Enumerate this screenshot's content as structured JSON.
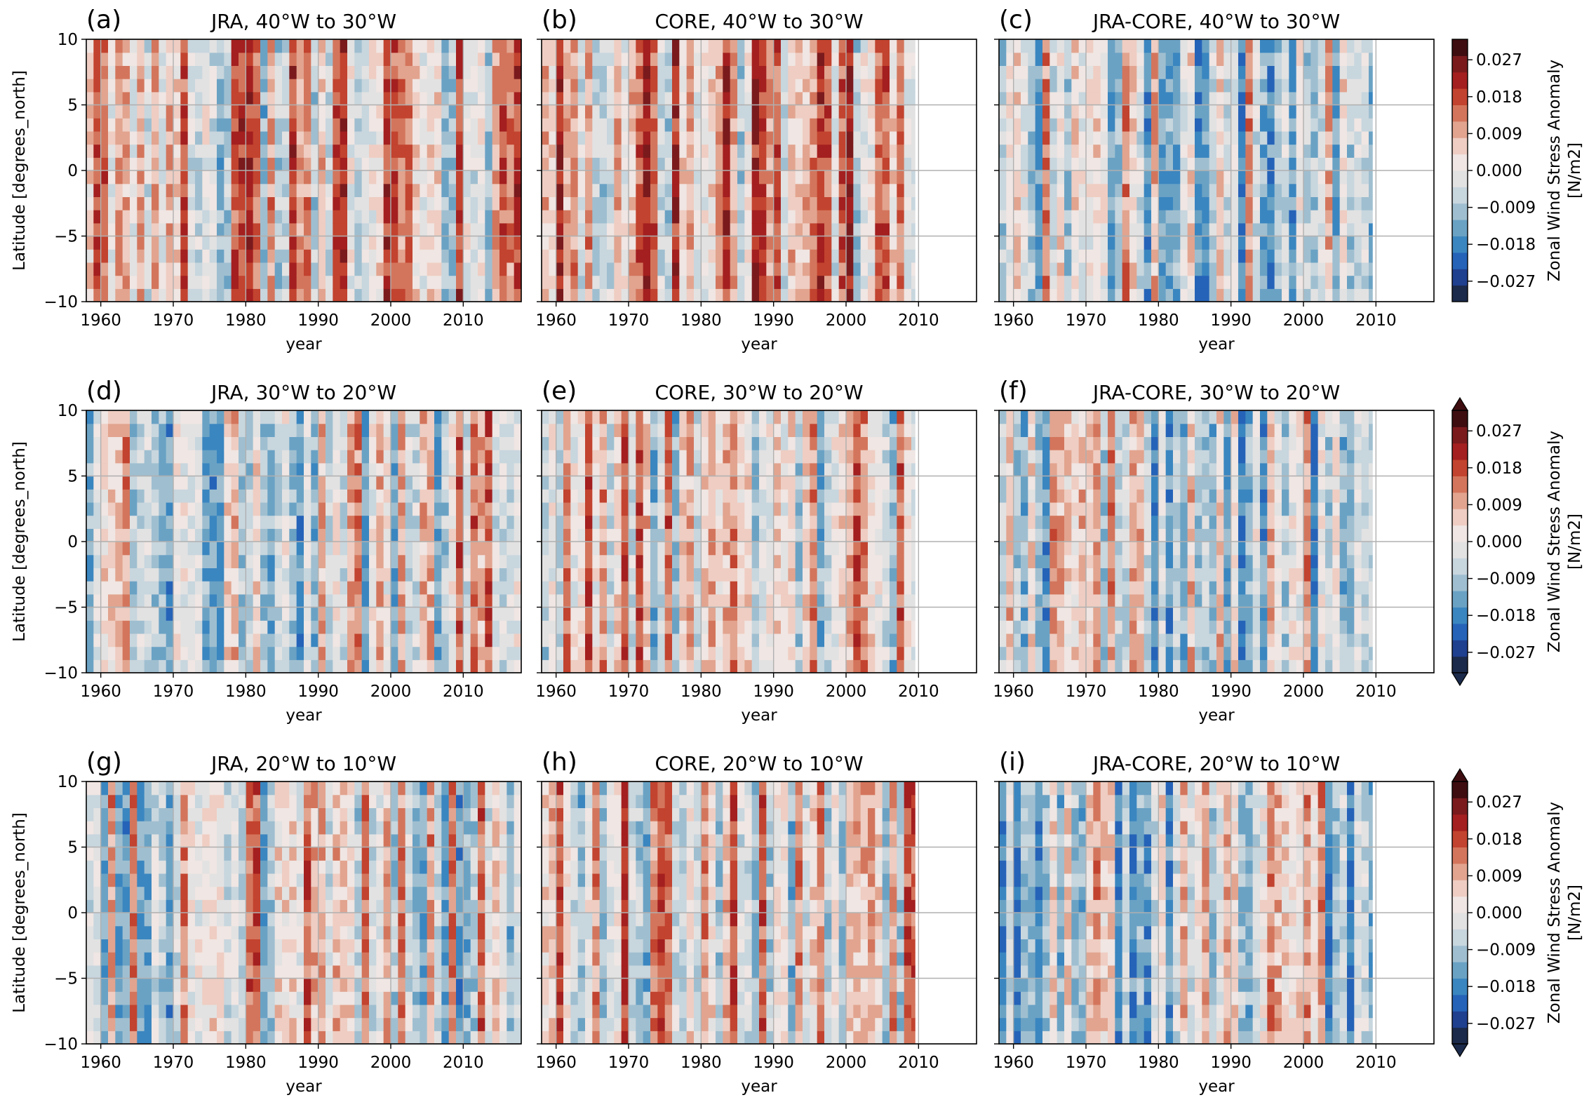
{
  "colors": {
    "scale": [
      "#1b2a4a",
      "#1f3f8f",
      "#2563b8",
      "#3a86c0",
      "#6aa2c4",
      "#9fbfd0",
      "#c8d6de",
      "#e2e2e2",
      "#f0e6e3",
      "#efcdc2",
      "#e2a48f",
      "#d3755c",
      "#c2432f",
      "#a41f1f",
      "#7a1a1d",
      "#3e0d10"
    ],
    "grid": "#b0b0b0",
    "axis": "#000000"
  },
  "chart_data": [
    {
      "panel": "(a)",
      "title": "JRA, 40°W to 30°W",
      "type": "heatmap",
      "xlabel": "year",
      "ylabel": "Latitude [degrees_north]",
      "xlim": [
        1958,
        2018
      ],
      "ylim": [
        -10,
        10
      ],
      "xticks": [
        "1960",
        "1970",
        "1980",
        "1990",
        "2000",
        "2010"
      ],
      "yticks": [
        "−10",
        "−5",
        "0",
        "5",
        "10"
      ],
      "data_end": 2018,
      "mean_anom": 0.004,
      "grid": true
    },
    {
      "panel": "(b)",
      "title": "CORE, 40°W to 30°W",
      "type": "heatmap",
      "xlabel": "year",
      "ylabel": "",
      "xlim": [
        1958,
        2018
      ],
      "ylim": [
        -10,
        10
      ],
      "xticks": [
        "1960",
        "1970",
        "1980",
        "1990",
        "2000",
        "2010"
      ],
      "yticks": [],
      "data_end": 2009.5,
      "mean_anom": 0.008,
      "grid": true
    },
    {
      "panel": "(c)",
      "title": "JRA-CORE, 40°W to 30°W",
      "type": "heatmap",
      "xlabel": "year",
      "ylabel": "",
      "xlim": [
        1958,
        2018
      ],
      "ylim": [
        -10,
        10
      ],
      "xticks": [
        "1960",
        "1970",
        "1980",
        "1990",
        "2000",
        "2010"
      ],
      "yticks": [],
      "data_end": 2009.5,
      "mean_anom": -0.003,
      "grid": true
    },
    {
      "panel": "(d)",
      "title": "JRA, 30°W to 20°W",
      "type": "heatmap",
      "xlabel": "year",
      "ylabel": "Latitude [degrees_north]",
      "xlim": [
        1958,
        2018
      ],
      "ylim": [
        -10,
        10
      ],
      "xticks": [
        "1960",
        "1970",
        "1980",
        "1990",
        "2000",
        "2010"
      ],
      "yticks": [
        "−10",
        "−5",
        "0",
        "5",
        "10"
      ],
      "data_end": 2018,
      "mean_anom": 0.0,
      "grid": true
    },
    {
      "panel": "(e)",
      "title": "CORE, 30°W to 20°W",
      "type": "heatmap",
      "xlabel": "year",
      "ylabel": "",
      "xlim": [
        1958,
        2018
      ],
      "ylim": [
        -10,
        10
      ],
      "xticks": [
        "1960",
        "1970",
        "1980",
        "1990",
        "2000",
        "2010"
      ],
      "yticks": [],
      "data_end": 2009.5,
      "mean_anom": 0.003,
      "grid": true
    },
    {
      "panel": "(f)",
      "title": "JRA-CORE, 30°W to 20°W",
      "type": "heatmap",
      "xlabel": "year",
      "ylabel": "",
      "xlim": [
        1958,
        2018
      ],
      "ylim": [
        -10,
        10
      ],
      "xticks": [
        "1960",
        "1970",
        "1980",
        "1990",
        "2000",
        "2010"
      ],
      "yticks": [],
      "data_end": 2009.5,
      "mean_anom": -0.004,
      "grid": true
    },
    {
      "panel": "(g)",
      "title": "JRA, 20°W to 10°W",
      "type": "heatmap",
      "xlabel": "year",
      "ylabel": "Latitude [degrees_north]",
      "xlim": [
        1958,
        2018
      ],
      "ylim": [
        -10,
        10
      ],
      "xticks": [
        "1960",
        "1970",
        "1980",
        "1990",
        "2000",
        "2010"
      ],
      "yticks": [
        "−10",
        "−5",
        "0",
        "5",
        "10"
      ],
      "data_end": 2018,
      "mean_anom": 0.0,
      "grid": true
    },
    {
      "panel": "(h)",
      "title": "CORE, 20°W to 10°W",
      "type": "heatmap",
      "xlabel": "year",
      "ylabel": "",
      "xlim": [
        1958,
        2018
      ],
      "ylim": [
        -10,
        10
      ],
      "xticks": [
        "1960",
        "1970",
        "1980",
        "1990",
        "2000",
        "2010"
      ],
      "yticks": [],
      "data_end": 2009.5,
      "mean_anom": 0.003,
      "grid": true
    },
    {
      "panel": "(i)",
      "title": "JRA-CORE, 20°W to 10°W",
      "type": "heatmap",
      "xlabel": "year",
      "ylabel": "",
      "xlim": [
        1958,
        2018
      ],
      "ylim": [
        -10,
        10
      ],
      "xticks": [
        "1960",
        "1970",
        "1980",
        "1990",
        "2000",
        "2010"
      ],
      "yticks": [],
      "data_end": 2009.5,
      "mean_anom": -0.003,
      "grid": true
    }
  ],
  "colorbars": [
    {
      "label_line1": "Zonal Wind Stress Anomaly",
      "label_line2": "[N/m2]",
      "ticks": [
        "0.027",
        "0.018",
        "0.009",
        "0.000",
        "−0.009",
        "−0.018",
        "−0.027"
      ],
      "tick_values": [
        0.027,
        0.018,
        0.009,
        0.0,
        -0.009,
        -0.018,
        -0.027
      ],
      "range": [
        -0.032,
        0.032
      ],
      "extend": "neither"
    },
    {
      "label_line1": "Zonal Wind Stress Anomaly",
      "label_line2": "[N/m2]",
      "ticks": [
        "0.027",
        "0.018",
        "0.009",
        "0.000",
        "−0.009",
        "−0.018",
        "−0.027"
      ],
      "tick_values": [
        0.027,
        0.018,
        0.009,
        0.0,
        -0.009,
        -0.018,
        -0.027
      ],
      "range": [
        -0.032,
        0.032
      ],
      "extend": "both"
    },
    {
      "label_line1": "Zonal Wind Stress Anomaly",
      "label_line2": "[N/m2]",
      "ticks": [
        "0.027",
        "0.018",
        "0.009",
        "0.000",
        "−0.009",
        "−0.018",
        "−0.027"
      ],
      "tick_values": [
        0.027,
        0.018,
        0.009,
        0.0,
        -0.009,
        -0.018,
        -0.027
      ],
      "range": [
        -0.032,
        0.032
      ],
      "extend": "both"
    }
  ]
}
